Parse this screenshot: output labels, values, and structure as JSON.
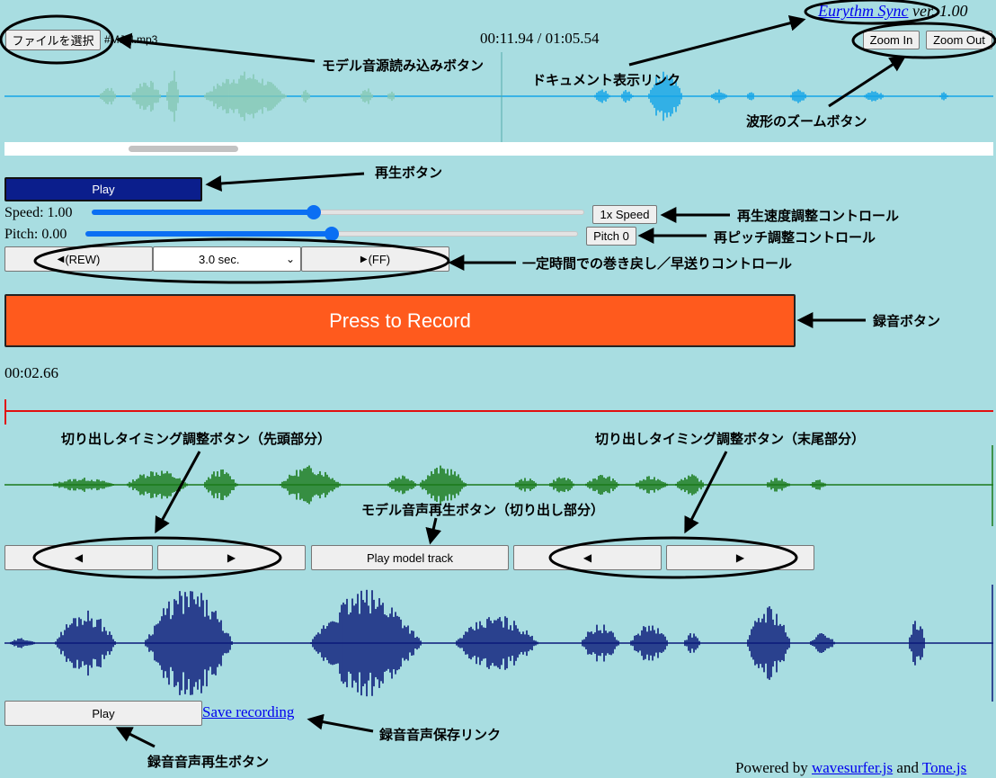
{
  "header": {
    "file_button_label": "ファイルを選択",
    "file_name": "#MJM.mp3",
    "time_display": "00:11.94 / 01:05.54",
    "app_link": "Eurythm Sync",
    "version": "ver. 1.00",
    "zoom_in_label": "Zoom In",
    "zoom_out_label": "Zoom Out"
  },
  "player": {
    "play_label": "Play",
    "speed_label": "Speed: 1.00",
    "speed_value": 0.45,
    "speed_button": "1x Speed",
    "pitch_label": "Pitch: 0.00",
    "pitch_value": 0.5,
    "pitch_button": "Pitch 0",
    "rew_label": "(REW)",
    "ff_label": "(FF)",
    "step_selected": "3.0 sec."
  },
  "recorder": {
    "record_label": "Press to Record",
    "record_time": "00:02.66",
    "play_model_label": "Play model track",
    "play_label": "Play",
    "save_link": "Save recording"
  },
  "footer": {
    "powered_by": "Powered by",
    "wavesurfer": "wavesurfer.js",
    "and": "and",
    "tone": "Tone.js"
  },
  "annotations": {
    "model_load": "モデル音源読み込みボタン",
    "doc_link": "ドキュメント表示リンク",
    "zoom": "波形のズームボタン",
    "play": "再生ボタン",
    "speed": "再生速度調整コントロール",
    "pitch": "再ピッチ調整コントロール",
    "skip": "一定時間での巻き戻し／早送りコントロール",
    "record": "録音ボタン",
    "trim_head": "切り出しタイミング調整ボタン（先頭部分）",
    "trim_tail": "切り出しタイミング調整ボタン（末尾部分）",
    "model_play": "モデル音声再生ボタン（切り出し部分）",
    "rec_save": "録音音声保存リンク",
    "rec_play": "録音音声再生ボタン"
  },
  "colors": {
    "background": "#a8dde1",
    "record_button": "#ff5a1d",
    "play_button": "#0b1e8c",
    "model_wave_played": "#86c9b5",
    "model_wave_rest": "#14a5e8",
    "trim_wave": "#1a7a1a",
    "record_wave": "#0a1a7a",
    "cursor": "#e01010"
  },
  "icons": {
    "left": "triangle-left-icon",
    "right": "triangle-right-icon"
  }
}
